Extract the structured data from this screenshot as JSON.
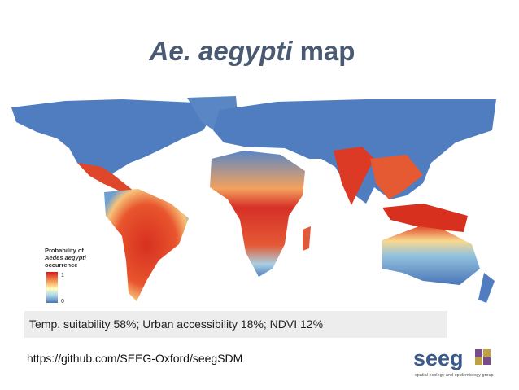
{
  "title": {
    "italic": "Ae. aegypti",
    "rest": "map"
  },
  "legend": {
    "line1": "Probability of",
    "line2": "Aedes aegypti",
    "line3": "occurrence",
    "high": "1",
    "low": "0"
  },
  "caption": "Temp. suitability 58%; Urban accessibility 18%; NDVI 12%",
  "source_url": "https://github.com/SEEG-Oxford/seegSDM",
  "logo": {
    "name": "seeg",
    "tagline": "spatial ecology and epidemiology group"
  }
}
